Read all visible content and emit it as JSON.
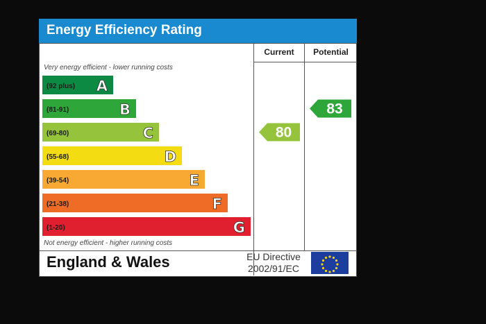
{
  "chart_data": {
    "type": "bar",
    "title": "Energy Efficiency Rating",
    "columns": [
      "Current",
      "Potential"
    ],
    "top_note": "Very energy efficient - lower running costs",
    "bottom_note": "Not energy efficient - higher running costs",
    "bands": [
      {
        "letter": "A",
        "range": "(92 plus)",
        "color": "#0c8a44"
      },
      {
        "letter": "B",
        "range": "(81-91)",
        "color": "#2ea63a"
      },
      {
        "letter": "C",
        "range": "(69-80)",
        "color": "#95c43c"
      },
      {
        "letter": "D",
        "range": "(55-68)",
        "color": "#f4dc13"
      },
      {
        "letter": "E",
        "range": "(39-54)",
        "color": "#f7a934"
      },
      {
        "letter": "F",
        "range": "(21-38)",
        "color": "#ee6c25"
      },
      {
        "letter": "G",
        "range": "(1-20)",
        "color": "#e0202e"
      }
    ],
    "current": {
      "value": 80,
      "band": "C",
      "color": "#95c43c"
    },
    "potential": {
      "value": 83,
      "band": "B",
      "color": "#2ea63a"
    }
  },
  "footer": {
    "region": "England & Wales",
    "directive_line1": "EU Directive",
    "directive_line2": "2002/91/EC"
  }
}
